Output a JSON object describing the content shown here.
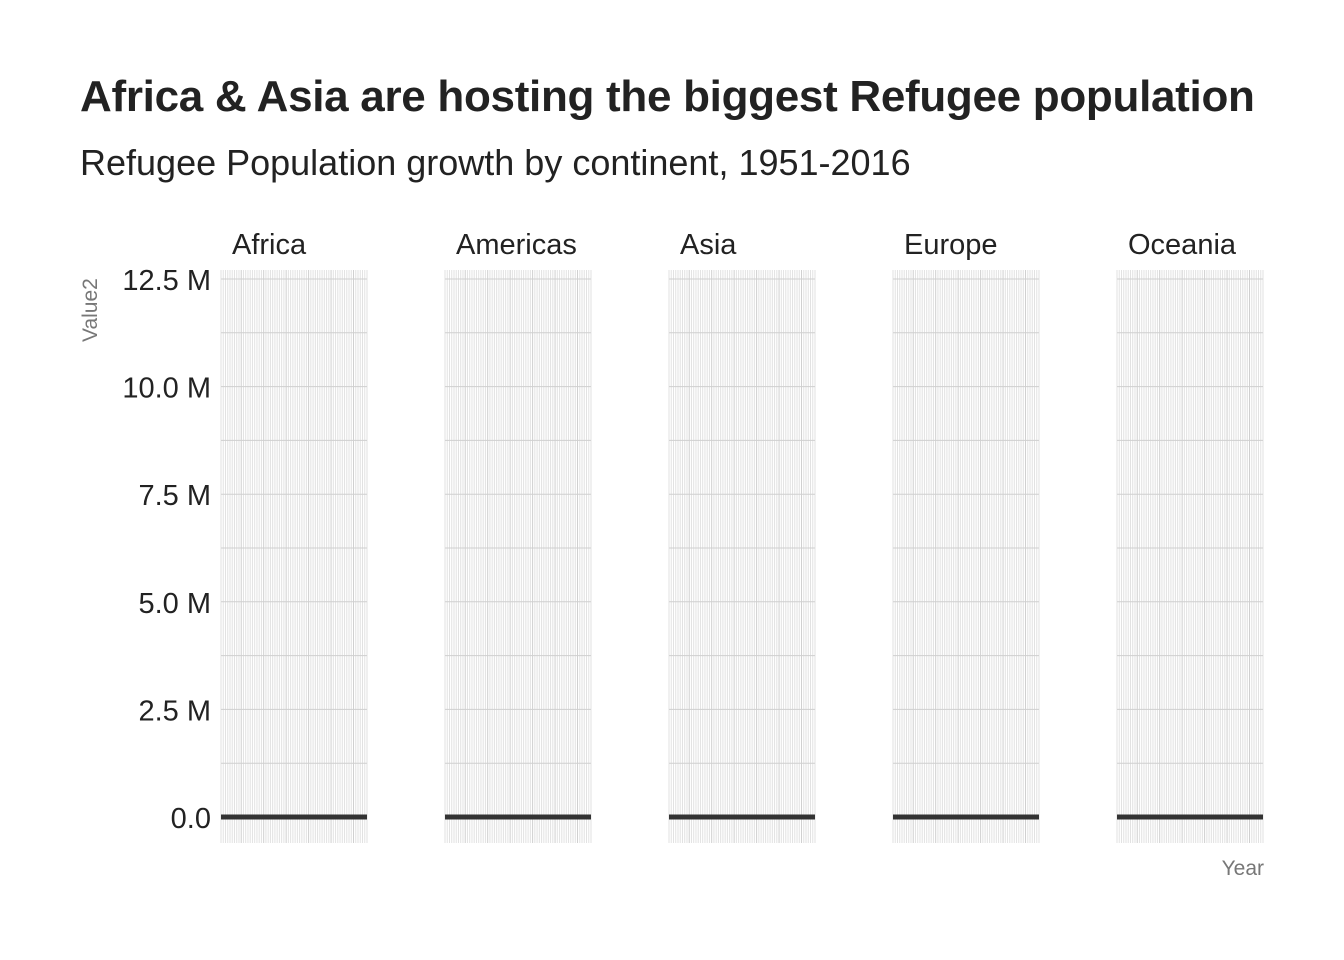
{
  "title": "Africa & Asia are hosting the biggest Refugee population",
  "subtitle": "Refugee Population growth by continent, 1951-2016",
  "chart_data": {
    "type": "line",
    "facet_layout": "single-row",
    "facets": [
      "Africa",
      "Americas",
      "Asia",
      "Europe",
      "Oceania"
    ],
    "x_range": [
      1951,
      2016
    ],
    "xlabel": "Year",
    "ylabel": "Value2",
    "ylim": [
      0,
      12500000
    ],
    "y_ticks": [
      0,
      2500000,
      5000000,
      7500000,
      10000000,
      12500000
    ],
    "y_tick_labels": [
      "0.0",
      "2.5 M",
      "5.0 M",
      "7.5 M",
      "10.0 M",
      "12.5 M"
    ],
    "grid": true,
    "series": [
      {
        "facet": "Africa",
        "x": [
          1951,
          2016
        ],
        "values": [
          0,
          0
        ]
      },
      {
        "facet": "Americas",
        "x": [
          1951,
          2016
        ],
        "values": [
          0,
          0
        ]
      },
      {
        "facet": "Asia",
        "x": [
          1951,
          2016
        ],
        "values": [
          0,
          0
        ]
      },
      {
        "facet": "Europe",
        "x": [
          1951,
          2016
        ],
        "values": [
          0,
          0
        ]
      },
      {
        "facet": "Oceania",
        "x": [
          1951,
          2016
        ],
        "values": [
          0,
          0
        ]
      }
    ],
    "colors": {
      "line": "#333333",
      "grid_major": "#cfcfcf",
      "grid_minor": "#e2e2e2"
    }
  }
}
